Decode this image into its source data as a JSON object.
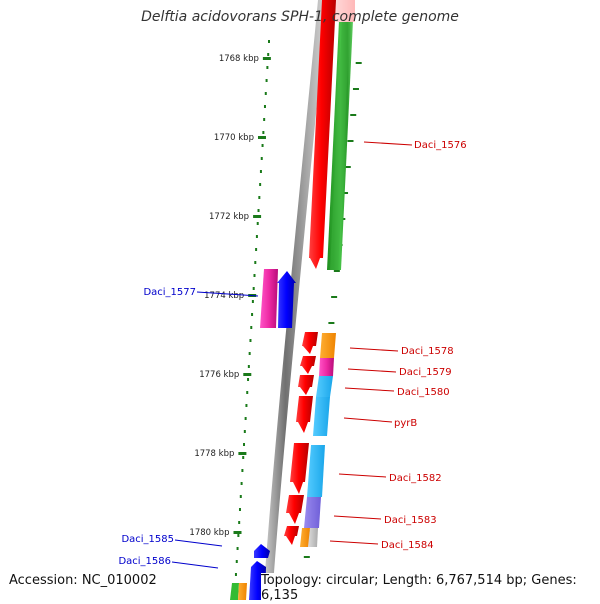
{
  "title": "Delftia acidovorans SPH-1, complete genome",
  "footer": {
    "accession": "Accession: NC_010002",
    "summary": "Topology: circular; Length: 6,767,514 bp; Genes: 6,135"
  },
  "colors": {
    "forward_label": "#cc0000",
    "reverse_label": "#0000cc",
    "tick": "#1a7a1a",
    "backbone": "#8a8a8a"
  },
  "axis": {
    "ticks": [
      {
        "pos_kbp": 1768,
        "label": "1768 kbp"
      },
      {
        "pos_kbp": 1770,
        "label": "1770 kbp"
      },
      {
        "pos_kbp": 1772,
        "label": "1772 kbp"
      },
      {
        "pos_kbp": 1774,
        "label": "1774 kbp"
      },
      {
        "pos_kbp": 1776,
        "label": "1776 kbp"
      },
      {
        "pos_kbp": 1778,
        "label": "1778 kbp"
      },
      {
        "pos_kbp": 1780,
        "label": "1780 kbp"
      }
    ]
  },
  "gene_labels": [
    {
      "name": "Daci_1576",
      "strand": "forward"
    },
    {
      "name": "Daci_1577",
      "strand": "reverse"
    },
    {
      "name": "Daci_1578",
      "strand": "forward"
    },
    {
      "name": "Daci_1579",
      "strand": "forward"
    },
    {
      "name": "Daci_1580",
      "strand": "forward"
    },
    {
      "name": "pyrB",
      "strand": "forward"
    },
    {
      "name": "Daci_1582",
      "strand": "forward"
    },
    {
      "name": "Daci_1583",
      "strand": "forward"
    },
    {
      "name": "Daci_1584",
      "strand": "forward"
    },
    {
      "name": "Daci_1585",
      "strand": "reverse"
    },
    {
      "name": "Daci_1586",
      "strand": "reverse"
    }
  ]
}
